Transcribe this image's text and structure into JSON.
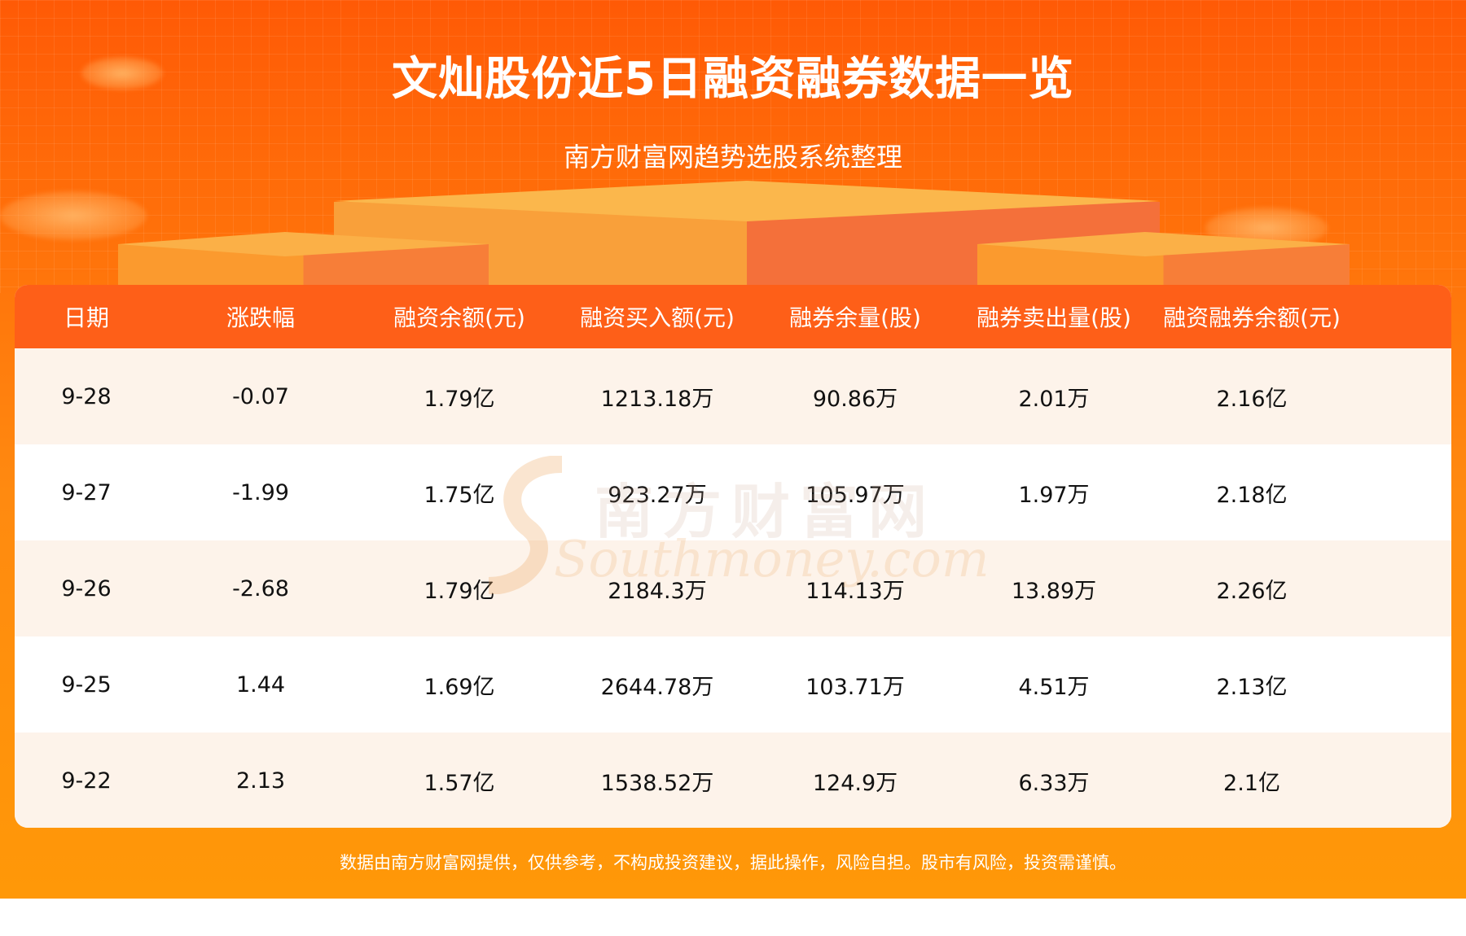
{
  "header": {
    "title": "文灿股份近5日融资融券数据一览",
    "subtitle": "南方财富网趋势选股系统整理"
  },
  "table": {
    "columns": [
      "日期",
      "涨跌幅",
      "融资余额(元)",
      "融资买入额(元)",
      "融券余量(股)",
      "融券卖出量(股)",
      "融资融券余额(元)"
    ],
    "rows": [
      [
        "9-28",
        "-0.07",
        "1.79亿",
        "1213.18万",
        "90.86万",
        "2.01万",
        "2.16亿"
      ],
      [
        "9-27",
        "-1.99",
        "1.75亿",
        "923.27万",
        "105.97万",
        "1.97万",
        "2.18亿"
      ],
      [
        "9-26",
        "-2.68",
        "1.79亿",
        "2184.3万",
        "114.13万",
        "13.89万",
        "2.26亿"
      ],
      [
        "9-25",
        "1.44",
        "1.69亿",
        "2644.78万",
        "103.71万",
        "4.51万",
        "2.13亿"
      ],
      [
        "9-22",
        "2.13",
        "1.57亿",
        "1538.52万",
        "124.9万",
        "6.33万",
        "2.1亿"
      ]
    ]
  },
  "watermark": {
    "cn": "南方财富网",
    "en": "Southmoney.com"
  },
  "footer": {
    "disclaimer": "数据由南方财富网提供，仅供参考，不构成投资建议，据此操作，风险自担。股市有风险，投资需谨慎。"
  },
  "colors": {
    "header_bg": "#fe5f18",
    "banner": "#ff700a",
    "row_alt": "#fdf3ea"
  }
}
